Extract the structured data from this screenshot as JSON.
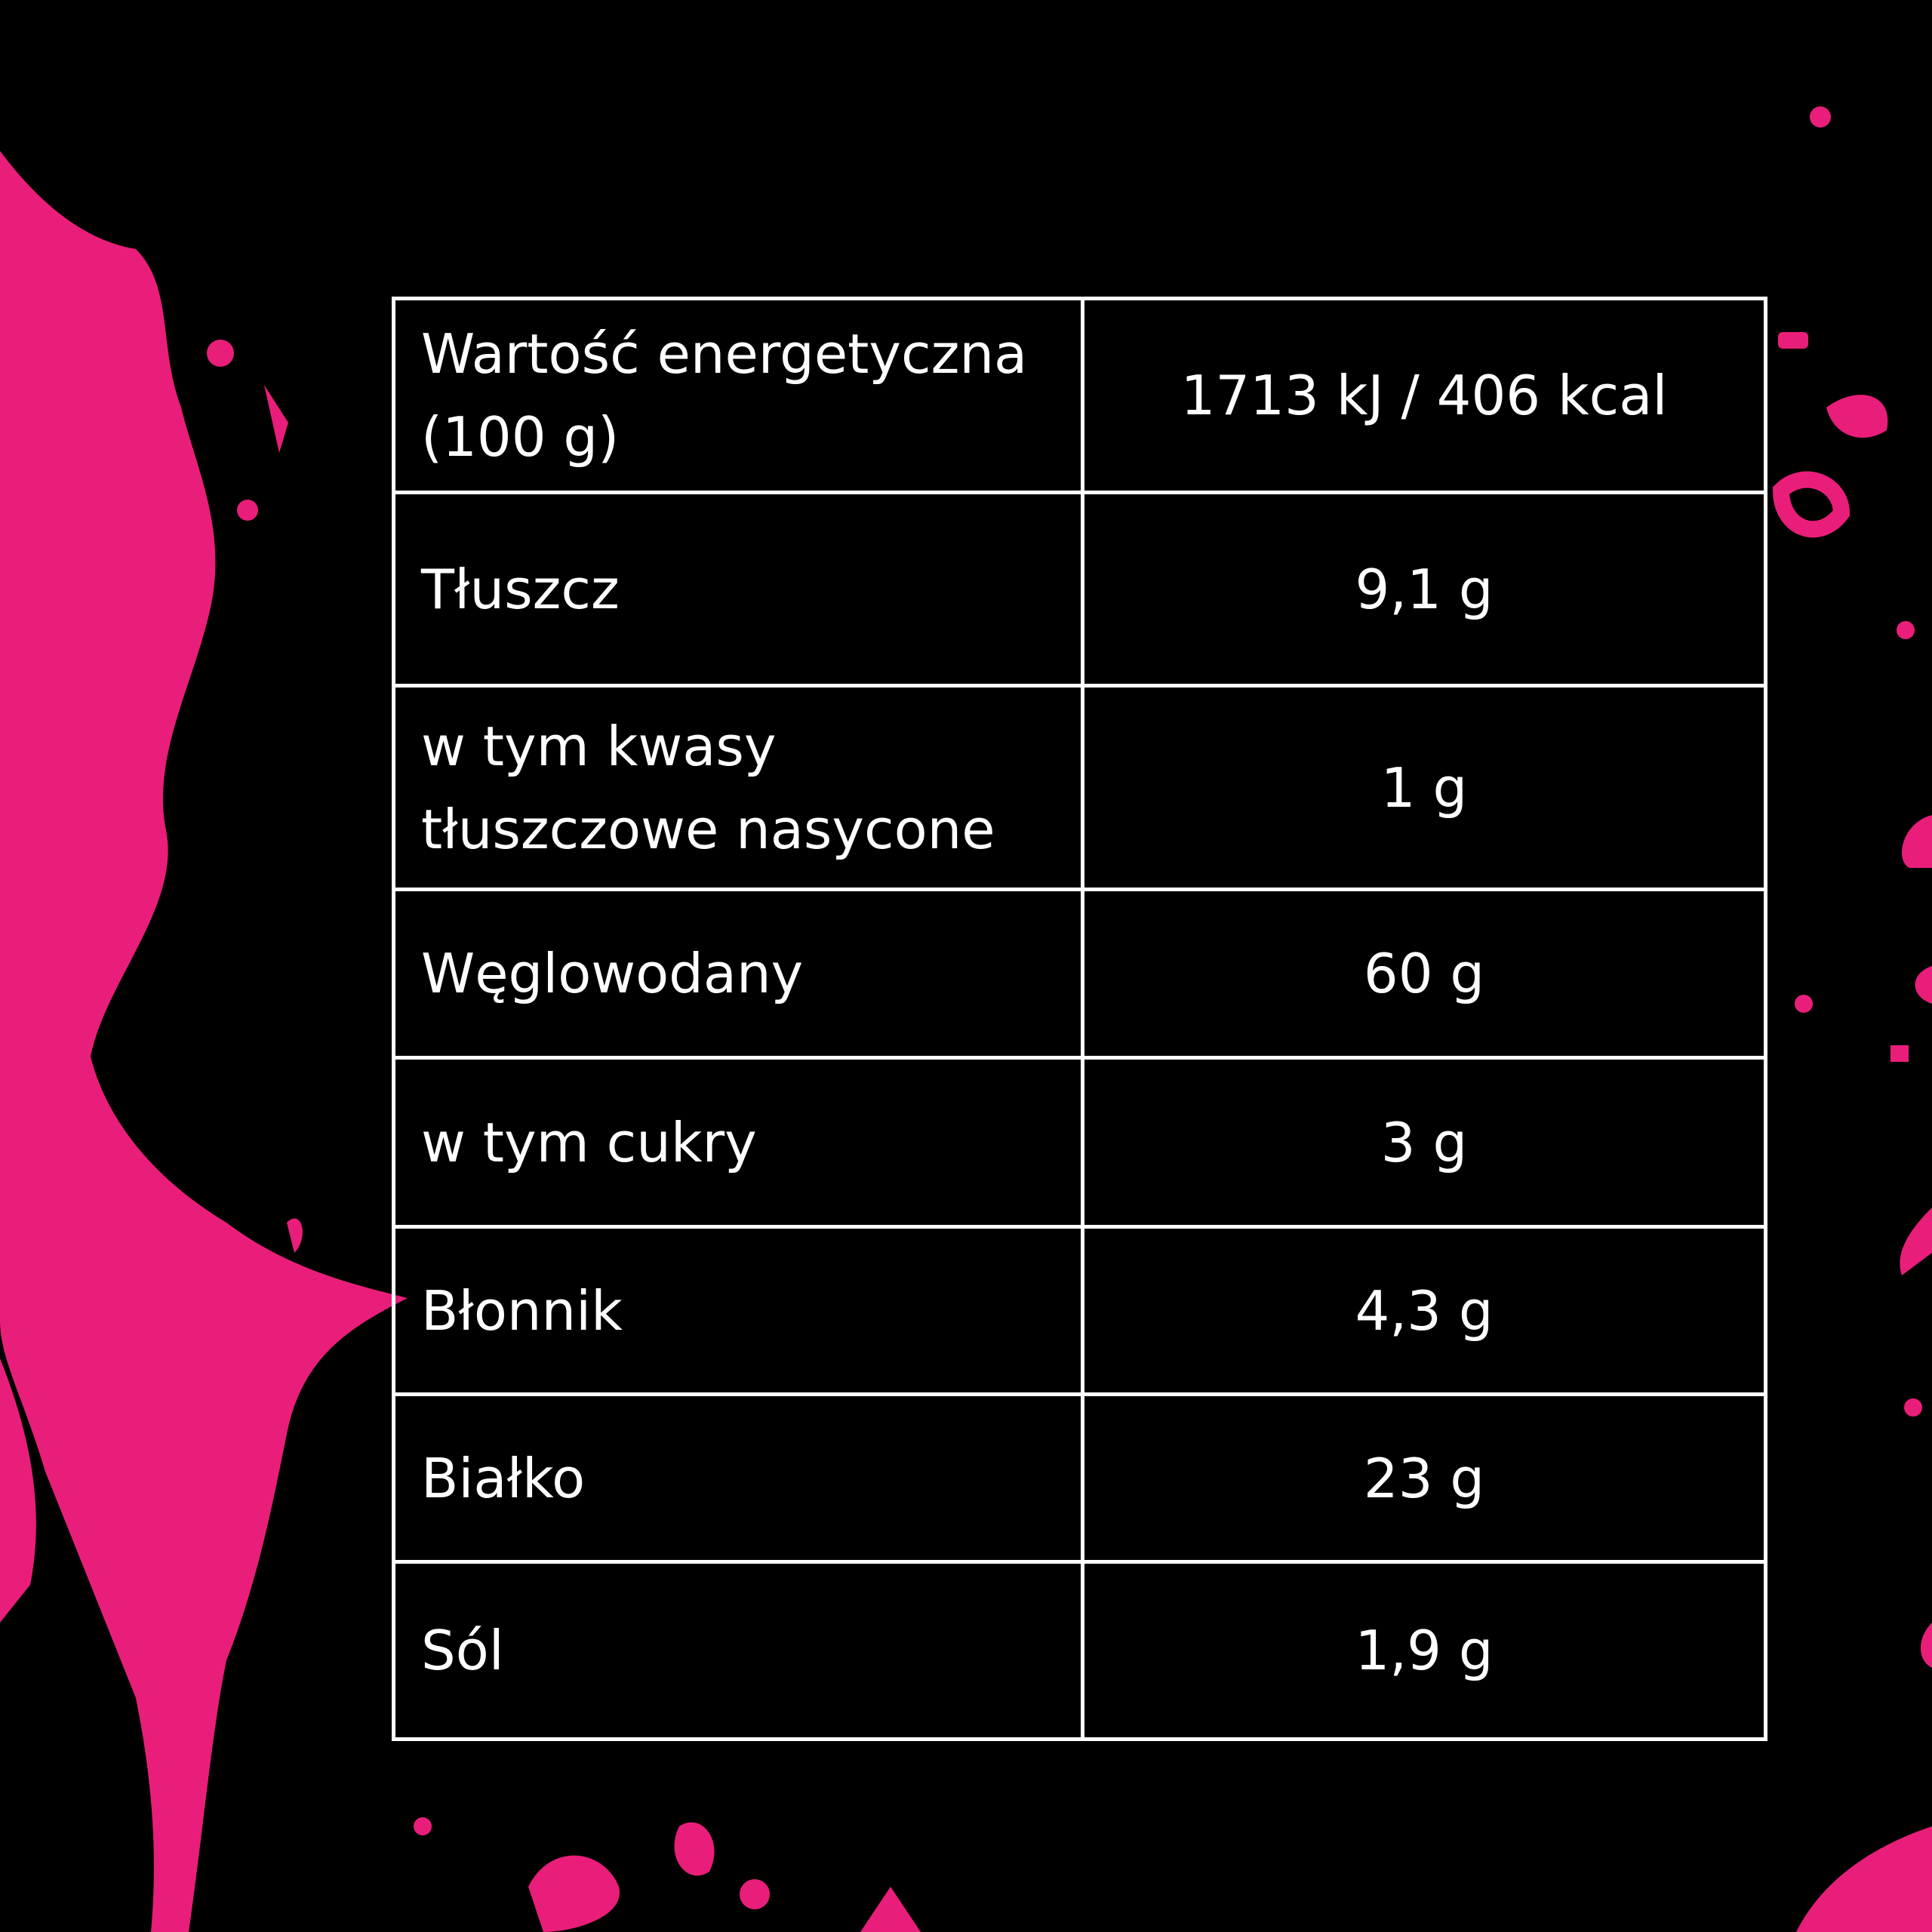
{
  "colors": {
    "background": "#000000",
    "accent": "#e91e7a",
    "text": "#ffffff"
  },
  "nutrition_table": {
    "rows": [
      {
        "label": "Wartość energetyczna (100 g)",
        "value": "1713 kJ / 406 kcal"
      },
      {
        "label": "Tłuszcz",
        "value": "9,1 g"
      },
      {
        "label": "w tym kwasy tłuszczowe nasycone",
        "value": "1 g"
      },
      {
        "label": "Węglowodany",
        "value": "60 g"
      },
      {
        "label": "w tym cukry",
        "value": "3 g"
      },
      {
        "label": "Błonnik",
        "value": "4,3 g"
      },
      {
        "label": "Białko",
        "value": "23 g"
      },
      {
        "label": "Sól",
        "value": "1,9 g"
      }
    ]
  }
}
